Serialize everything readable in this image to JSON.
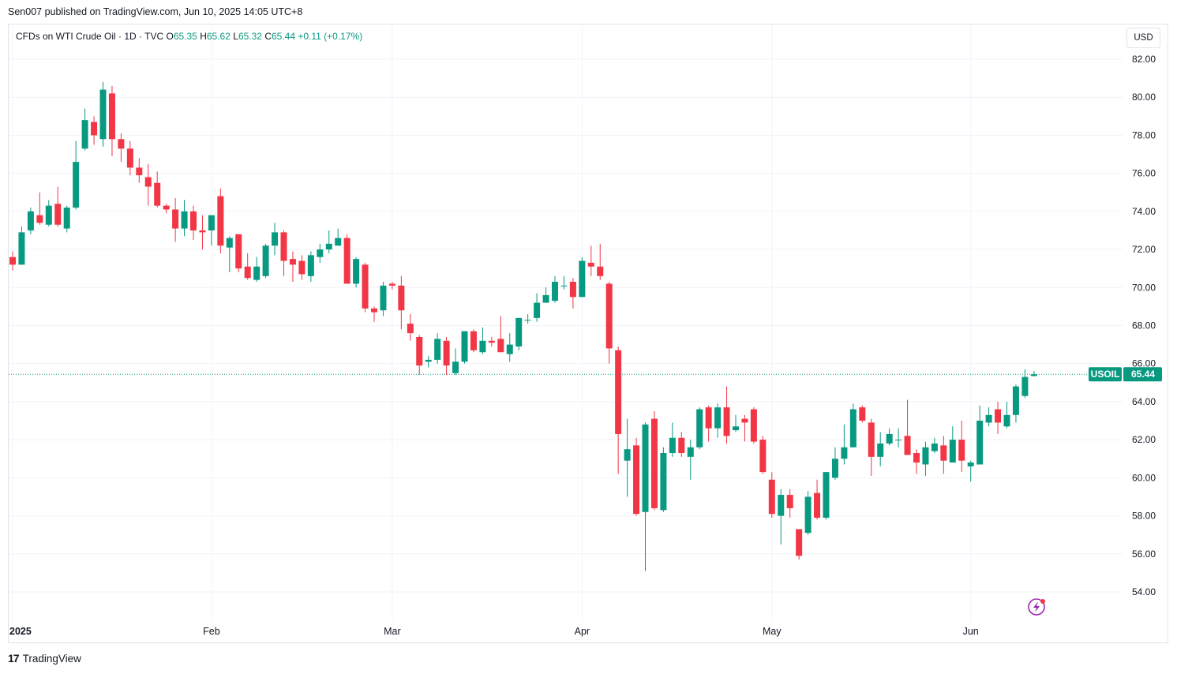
{
  "header": {
    "published_text": "Sen007 published on TradingView.com, Jun 10, 2025 14:05 UTC+8"
  },
  "legend": {
    "symbol": "CFDs on WTI Crude Oil · 1D · TVC",
    "o_label": "O",
    "o_value": "65.35",
    "h_label": "H",
    "h_value": "65.62",
    "l_label": "L",
    "l_value": "65.32",
    "c_label": "C",
    "c_value": "65.44",
    "change": "+0.11 (+0.17%)"
  },
  "currency": "USD",
  "price_tag": {
    "symbol": "USOIL",
    "value": "65.44"
  },
  "footer": {
    "brand": "TradingView"
  },
  "colors": {
    "up": "#089981",
    "down": "#f23645",
    "grid": "#f0f3fa",
    "text": "#131722"
  },
  "chart_data": {
    "type": "candlestick",
    "symbol": "USOIL",
    "interval": "1D",
    "ylim": [
      52.5,
      83.5
    ],
    "y_ticks": [
      "82.00",
      "80.00",
      "78.00",
      "76.00",
      "74.00",
      "72.00",
      "70.00",
      "68.00",
      "66.00",
      "64.00",
      "62.00",
      "60.00",
      "58.00",
      "56.00",
      "54.00"
    ],
    "x_ticks": [
      {
        "label": "2025",
        "index": 0
      },
      {
        "label": "Feb",
        "index": 22
      },
      {
        "label": "Mar",
        "index": 42
      },
      {
        "label": "Apr",
        "index": 63
      },
      {
        "label": "May",
        "index": 84
      },
      {
        "label": "Jun",
        "index": 106
      }
    ],
    "last_price": 65.44,
    "candles": [
      [
        71.6,
        71.2,
        70.9,
        71.9
      ],
      [
        71.2,
        72.9,
        71.4,
        73.2
      ],
      [
        73.0,
        74.0,
        72.8,
        74.2
      ],
      [
        73.8,
        73.4,
        73.3,
        75.0
      ],
      [
        73.3,
        74.3,
        73.2,
        74.6
      ],
      [
        74.4,
        73.3,
        73.2,
        75.3
      ],
      [
        73.1,
        74.2,
        72.9,
        74.3
      ],
      [
        74.2,
        76.6,
        74.1,
        77.7
      ],
      [
        77.3,
        78.8,
        77.2,
        79.4
      ],
      [
        78.7,
        78.0,
        77.5,
        79.0
      ],
      [
        77.8,
        80.4,
        77.4,
        80.8
      ],
      [
        80.2,
        77.8,
        76.9,
        80.6
      ],
      [
        77.8,
        77.3,
        76.6,
        78.1
      ],
      [
        77.3,
        76.3,
        75.9,
        77.7
      ],
      [
        76.3,
        75.9,
        75.5,
        76.8
      ],
      [
        75.8,
        75.3,
        74.3,
        76.5
      ],
      [
        75.5,
        74.3,
        74.2,
        76.1
      ],
      [
        74.3,
        74.1,
        73.9,
        74.4
      ],
      [
        74.1,
        73.1,
        72.4,
        74.7
      ],
      [
        73.1,
        74.0,
        72.7,
        74.6
      ],
      [
        74.0,
        73.0,
        72.5,
        74.3
      ],
      [
        73.0,
        72.9,
        72.0,
        73.8
      ],
      [
        73.0,
        73.8,
        72.2,
        73.8
      ],
      [
        74.8,
        72.2,
        71.8,
        75.2
      ],
      [
        72.1,
        72.6,
        70.8,
        72.7
      ],
      [
        72.8,
        71.0,
        70.8,
        72.8
      ],
      [
        71.1,
        70.5,
        70.4,
        71.8
      ],
      [
        70.4,
        71.1,
        70.3,
        71.6
      ],
      [
        70.6,
        72.2,
        70.5,
        72.3
      ],
      [
        72.2,
        72.9,
        71.7,
        73.4
      ],
      [
        72.9,
        71.4,
        70.6,
        73.0
      ],
      [
        71.5,
        71.2,
        70.3,
        71.9
      ],
      [
        71.4,
        70.7,
        70.4,
        71.7
      ],
      [
        70.6,
        71.7,
        70.3,
        71.9
      ],
      [
        71.6,
        72.0,
        71.3,
        72.3
      ],
      [
        72.0,
        72.3,
        71.8,
        73.0
      ],
      [
        72.2,
        72.6,
        72.3,
        73.1
      ],
      [
        72.6,
        70.2,
        70.3,
        72.8
      ],
      [
        70.2,
        71.5,
        70.0,
        71.6
      ],
      [
        71.2,
        68.9,
        68.7,
        71.3
      ],
      [
        68.9,
        68.7,
        68.2,
        69.0
      ],
      [
        68.8,
        70.1,
        68.5,
        70.3
      ],
      [
        70.2,
        70.1,
        69.9,
        70.3
      ],
      [
        70.1,
        68.8,
        67.8,
        70.6
      ],
      [
        68.1,
        67.6,
        67.2,
        68.6
      ],
      [
        67.4,
        65.9,
        65.4,
        67.5
      ],
      [
        66.1,
        66.2,
        65.8,
        66.4
      ],
      [
        66.2,
        67.3,
        66.0,
        67.6
      ],
      [
        67.2,
        65.9,
        65.4,
        67.4
      ],
      [
        65.5,
        66.1,
        65.4,
        66.8
      ],
      [
        66.1,
        67.7,
        66.0,
        67.7
      ],
      [
        67.7,
        66.7,
        66.6,
        67.8
      ],
      [
        66.6,
        67.2,
        66.5,
        67.9
      ],
      [
        67.2,
        67.1,
        66.9,
        67.4
      ],
      [
        67.3,
        66.6,
        66.6,
        68.5
      ],
      [
        66.5,
        67.0,
        66.1,
        67.6
      ],
      [
        66.9,
        68.4,
        66.7,
        68.4
      ],
      [
        68.3,
        68.3,
        68.1,
        68.6
      ],
      [
        68.4,
        69.2,
        68.2,
        69.7
      ],
      [
        69.2,
        69.6,
        69.5,
        70.0
      ],
      [
        69.3,
        70.3,
        69.2,
        70.6
      ],
      [
        70.1,
        70.1,
        69.9,
        70.6
      ],
      [
        70.3,
        69.5,
        68.9,
        70.5
      ],
      [
        69.5,
        71.4,
        69.5,
        71.6
      ],
      [
        71.3,
        71.1,
        70.6,
        72.2
      ],
      [
        71.1,
        70.6,
        70.4,
        72.3
      ],
      [
        70.2,
        66.8,
        66.0,
        70.3
      ],
      [
        66.7,
        62.3,
        60.2,
        66.9
      ],
      [
        60.9,
        61.5,
        59.0,
        63.1
      ],
      [
        61.7,
        58.1,
        58.0,
        62.1
      ],
      [
        58.2,
        62.8,
        55.1,
        62.9
      ],
      [
        63.1,
        58.4,
        58.3,
        63.5
      ],
      [
        58.3,
        61.3,
        58.2,
        61.6
      ],
      [
        61.3,
        62.1,
        61.1,
        62.9
      ],
      [
        62.1,
        61.3,
        61.1,
        62.4
      ],
      [
        61.1,
        61.6,
        59.9,
        62.0
      ],
      [
        61.6,
        63.6,
        61.5,
        63.7
      ],
      [
        63.7,
        62.6,
        61.9,
        63.8
      ],
      [
        62.6,
        63.7,
        62.1,
        63.9
      ],
      [
        63.7,
        62.2,
        61.8,
        64.8
      ],
      [
        62.5,
        62.7,
        62.4,
        63.3
      ],
      [
        63.1,
        62.9,
        61.9,
        63.3
      ],
      [
        63.6,
        61.9,
        61.8,
        63.7
      ],
      [
        62.0,
        60.3,
        60.2,
        62.2
      ],
      [
        59.9,
        58.1,
        57.9,
        60.3
      ],
      [
        58.0,
        59.1,
        56.5,
        59.4
      ],
      [
        59.1,
        58.4,
        57.9,
        59.4
      ],
      [
        57.3,
        55.9,
        55.7,
        57.2
      ],
      [
        57.1,
        59.0,
        57.0,
        59.3
      ],
      [
        59.2,
        57.9,
        57.8,
        59.9
      ],
      [
        57.9,
        60.3,
        57.8,
        60.3
      ],
      [
        60.0,
        61.0,
        59.9,
        61.6
      ],
      [
        61.0,
        61.6,
        60.7,
        62.8
      ],
      [
        61.6,
        63.6,
        61.6,
        63.9
      ],
      [
        63.7,
        63.0,
        62.9,
        63.8
      ],
      [
        62.9,
        61.1,
        60.1,
        63.1
      ],
      [
        61.1,
        61.8,
        60.6,
        62.4
      ],
      [
        61.8,
        62.3,
        61.7,
        62.6
      ],
      [
        62.0,
        62.0,
        61.6,
        62.6
      ],
      [
        62.2,
        61.2,
        61.3,
        64.1
      ],
      [
        61.3,
        60.8,
        60.2,
        61.5
      ],
      [
        60.7,
        61.6,
        60.1,
        61.9
      ],
      [
        61.4,
        61.8,
        61.3,
        62.1
      ],
      [
        61.7,
        60.9,
        60.2,
        62.2
      ],
      [
        60.8,
        62.0,
        60.8,
        62.7
      ],
      [
        62.0,
        60.9,
        60.3,
        63.0
      ],
      [
        60.6,
        60.8,
        59.8,
        60.9
      ],
      [
        60.7,
        63.0,
        60.7,
        63.8
      ],
      [
        62.9,
        63.3,
        62.7,
        63.7
      ],
      [
        63.6,
        62.9,
        62.3,
        64.0
      ],
      [
        62.7,
        63.3,
        62.6,
        64.0
      ],
      [
        63.3,
        64.8,
        62.9,
        64.9
      ],
      [
        64.3,
        65.3,
        64.2,
        65.7
      ],
      [
        65.35,
        65.44,
        65.32,
        65.62
      ]
    ]
  }
}
